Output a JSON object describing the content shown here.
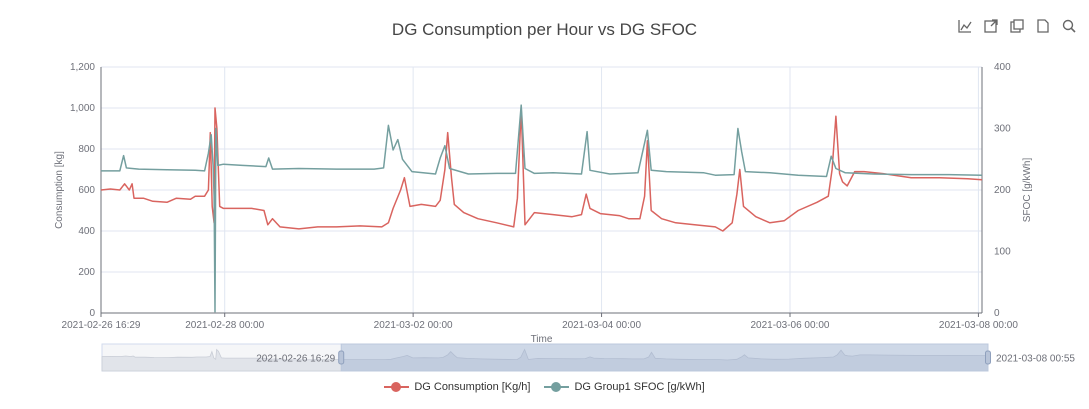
{
  "toolbox": {
    "icons": [
      "restore-icon",
      "data-view-icon",
      "save-image-icon",
      "data-table-icon",
      "zoom-icon"
    ]
  },
  "chart_data": {
    "type": "line",
    "title": "DG Consumption per Hour vs DG SFOC",
    "xlabel": "Time",
    "ylabel_left": "Consumption [kg]",
    "ylabel_right": "SFOC [g/kWh]",
    "ylim_left": [
      0,
      1200
    ],
    "ylim_right": [
      0,
      400
    ],
    "yticks_left": [
      "0",
      "200",
      "400",
      "600",
      "800",
      "1,000",
      "1,200"
    ],
    "yticks_right": [
      "0",
      "100",
      "200",
      "300",
      "400"
    ],
    "x_range": [
      "2021-02-26 16:29",
      "2021-03-08 00:55"
    ],
    "x_tick_labels": [
      "2021-02-26 16:29",
      "2021-02-28 00:00",
      "2021-03-02 00:00",
      "2021-03-04 00:00",
      "2021-03-06 00:00",
      "2021-03-08 00:00"
    ],
    "x_tick_days": [
      0,
      1.313,
      3.313,
      5.313,
      7.313,
      9.313
    ],
    "x_total_days": 9.351,
    "grid": true,
    "legend_position": "bottom-center",
    "series": [
      {
        "name": "DG Consumption [Kg/h]",
        "axis": "left",
        "color": "#d9645f",
        "points": [
          [
            0,
            600
          ],
          [
            0.1,
            605
          ],
          [
            0.2,
            600
          ],
          [
            0.25,
            630
          ],
          [
            0.3,
            600
          ],
          [
            0.33,
            630
          ],
          [
            0.35,
            560
          ],
          [
            0.45,
            560
          ],
          [
            0.55,
            545
          ],
          [
            0.7,
            540
          ],
          [
            0.8,
            560
          ],
          [
            0.95,
            555
          ],
          [
            1.0,
            570
          ],
          [
            1.1,
            570
          ],
          [
            1.14,
            600
          ],
          [
            1.16,
            880
          ],
          [
            1.18,
            520
          ],
          [
            1.2,
            440
          ],
          [
            1.21,
            1000
          ],
          [
            1.23,
            900
          ],
          [
            1.26,
            520
          ],
          [
            1.3,
            510
          ],
          [
            1.45,
            510
          ],
          [
            1.6,
            510
          ],
          [
            1.73,
            500
          ],
          [
            1.77,
            430
          ],
          [
            1.82,
            460
          ],
          [
            1.9,
            420
          ],
          [
            2.1,
            410
          ],
          [
            2.3,
            420
          ],
          [
            2.5,
            420
          ],
          [
            2.75,
            425
          ],
          [
            2.98,
            420
          ],
          [
            3.05,
            440
          ],
          [
            3.1,
            510
          ],
          [
            3.18,
            600
          ],
          [
            3.22,
            660
          ],
          [
            3.28,
            520
          ],
          [
            3.4,
            530
          ],
          [
            3.55,
            520
          ],
          [
            3.6,
            550
          ],
          [
            3.65,
            700
          ],
          [
            3.68,
            880
          ],
          [
            3.72,
            660
          ],
          [
            3.75,
            530
          ],
          [
            3.85,
            490
          ],
          [
            4.0,
            460
          ],
          [
            4.2,
            440
          ],
          [
            4.38,
            420
          ],
          [
            4.42,
            560
          ],
          [
            4.46,
            1000
          ],
          [
            4.5,
            430
          ],
          [
            4.6,
            490
          ],
          [
            4.8,
            480
          ],
          [
            5.0,
            470
          ],
          [
            5.1,
            480
          ],
          [
            5.15,
            580
          ],
          [
            5.19,
            510
          ],
          [
            5.3,
            485
          ],
          [
            5.5,
            475
          ],
          [
            5.6,
            460
          ],
          [
            5.72,
            460
          ],
          [
            5.77,
            570
          ],
          [
            5.8,
            840
          ],
          [
            5.84,
            500
          ],
          [
            5.95,
            460
          ],
          [
            6.1,
            440
          ],
          [
            6.3,
            430
          ],
          [
            6.52,
            420
          ],
          [
            6.6,
            400
          ],
          [
            6.7,
            440
          ],
          [
            6.75,
            580
          ],
          [
            6.78,
            700
          ],
          [
            6.82,
            520
          ],
          [
            6.95,
            470
          ],
          [
            7.1,
            440
          ],
          [
            7.25,
            450
          ],
          [
            7.4,
            500
          ],
          [
            7.6,
            540
          ],
          [
            7.72,
            570
          ],
          [
            7.76,
            700
          ],
          [
            7.8,
            960
          ],
          [
            7.84,
            680
          ],
          [
            7.87,
            640
          ],
          [
            7.92,
            620
          ],
          [
            8.0,
            690
          ],
          [
            8.1,
            690
          ],
          [
            8.3,
            680
          ],
          [
            8.6,
            660
          ],
          [
            8.9,
            660
          ],
          [
            9.2,
            655
          ],
          [
            9.351,
            650
          ]
        ]
      },
      {
        "name": "DG Group1 SFOC [g/kWh]",
        "axis": "right",
        "color": "#749f9f",
        "points": [
          [
            0,
            231
          ],
          [
            0.2,
            231
          ],
          [
            0.24,
            256
          ],
          [
            0.27,
            236
          ],
          [
            0.4,
            234
          ],
          [
            0.7,
            233
          ],
          [
            1.0,
            232
          ],
          [
            1.1,
            231
          ],
          [
            1.14,
            260
          ],
          [
            1.17,
            290
          ],
          [
            1.19,
            240
          ],
          [
            1.2,
            190
          ],
          [
            1.21,
            2
          ],
          [
            1.22,
            300
          ],
          [
            1.24,
            240
          ],
          [
            1.3,
            242
          ],
          [
            1.5,
            240
          ],
          [
            1.75,
            238
          ],
          [
            1.78,
            252
          ],
          [
            1.82,
            234
          ],
          [
            2.1,
            235
          ],
          [
            2.5,
            234
          ],
          [
            2.9,
            234
          ],
          [
            3.0,
            236
          ],
          [
            3.05,
            305
          ],
          [
            3.1,
            265
          ],
          [
            3.15,
            282
          ],
          [
            3.2,
            250
          ],
          [
            3.3,
            230
          ],
          [
            3.55,
            226
          ],
          [
            3.6,
            252
          ],
          [
            3.65,
            272
          ],
          [
            3.7,
            235
          ],
          [
            3.9,
            226
          ],
          [
            4.2,
            227
          ],
          [
            4.4,
            227
          ],
          [
            4.46,
            338
          ],
          [
            4.5,
            235
          ],
          [
            4.6,
            227
          ],
          [
            4.8,
            228
          ],
          [
            5.1,
            226
          ],
          [
            5.16,
            295
          ],
          [
            5.19,
            232
          ],
          [
            5.4,
            226
          ],
          [
            5.7,
            228
          ],
          [
            5.8,
            297
          ],
          [
            5.84,
            232
          ],
          [
            6.0,
            230
          ],
          [
            6.4,
            228
          ],
          [
            6.52,
            224
          ],
          [
            6.72,
            225
          ],
          [
            6.76,
            300
          ],
          [
            6.8,
            262
          ],
          [
            6.84,
            230
          ],
          [
            7.1,
            228
          ],
          [
            7.4,
            224
          ],
          [
            7.7,
            222
          ],
          [
            7.75,
            255
          ],
          [
            7.8,
            235
          ],
          [
            7.9,
            228
          ],
          [
            8.2,
            226
          ],
          [
            8.6,
            225
          ],
          [
            9.0,
            225
          ],
          [
            9.351,
            224
          ]
        ]
      }
    ],
    "datazoom": {
      "start_label": "2021-02-26 16:29",
      "end_label": "2021-03-08 00:55",
      "start_fraction": 0.27,
      "end_fraction": 1.0
    }
  }
}
